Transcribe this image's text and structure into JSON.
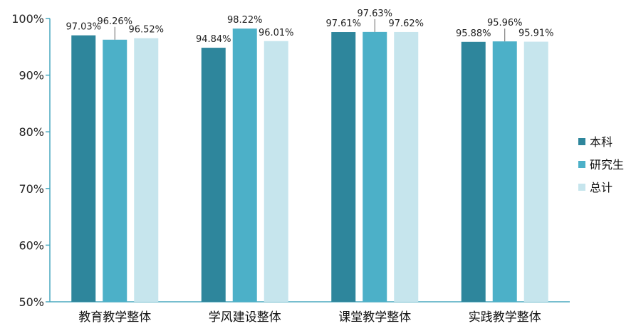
{
  "chart_data": {
    "type": "bar",
    "title": "",
    "xlabel": "",
    "ylabel": "",
    "ylim": [
      50,
      100
    ],
    "yticks": [
      50,
      60,
      70,
      80,
      90,
      100
    ],
    "ytick_labels": [
      "50%",
      "60%",
      "70%",
      "80%",
      "90%",
      "100%"
    ],
    "categories": [
      "教育教学整体",
      "学风建设整体",
      "课堂教学整体",
      "实践教学整体"
    ],
    "series": [
      {
        "name": "本科",
        "color": "#2e869c",
        "values": [
          97.03,
          94.84,
          97.61,
          95.88
        ],
        "labels": [
          "97.03%",
          "94.84%",
          "97.61%",
          "95.88%"
        ]
      },
      {
        "name": "研究生",
        "color": "#4cb0c8",
        "values": [
          96.26,
          98.22,
          97.63,
          95.96
        ],
        "labels": [
          "96.26%",
          "98.22%",
          "97.63%",
          "95.96%"
        ]
      },
      {
        "name": "总计",
        "color": "#c6e5ed",
        "values": [
          96.52,
          96.01,
          97.62,
          95.91
        ],
        "labels": [
          "96.52%",
          "96.01%",
          "97.62%",
          "95.91%"
        ]
      }
    ],
    "legend_position": "right",
    "grid": false
  }
}
